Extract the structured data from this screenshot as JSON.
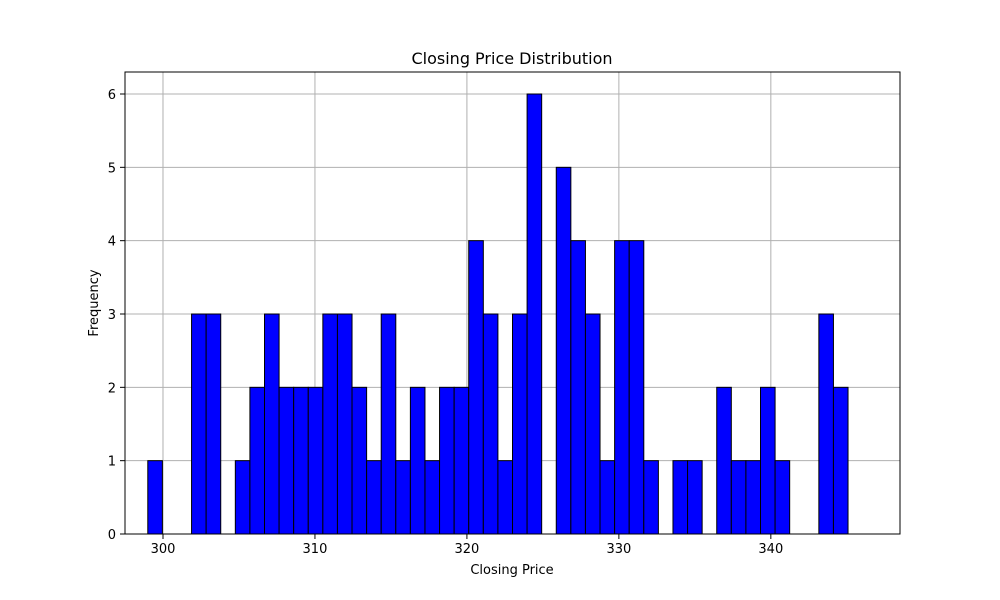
{
  "chart_data": {
    "type": "bar",
    "title": "Closing Price Distribution",
    "xlabel": "Closing Price",
    "ylabel": "Frequency",
    "bin_start": 299.0,
    "bin_width": 0.96,
    "values": [
      1,
      0,
      0,
      3,
      3,
      0,
      1,
      2,
      3,
      2,
      2,
      2,
      3,
      3,
      2,
      1,
      3,
      1,
      2,
      1,
      2,
      2,
      4,
      3,
      1,
      3,
      6,
      0,
      5,
      4,
      3,
      1,
      4,
      4,
      1,
      0,
      1,
      1,
      0,
      2,
      1,
      1,
      2,
      1,
      0,
      0,
      3,
      2
    ],
    "xlim": [
      297.5,
      348.5
    ],
    "ylim": [
      0,
      6.3
    ],
    "xticks": [
      300,
      310,
      320,
      330,
      340
    ],
    "yticks": [
      0,
      1,
      2,
      3,
      4,
      5,
      6
    ],
    "grid": true,
    "colors": {
      "bar_fill": "#0000ff",
      "bar_edge": "#000000",
      "grid": "#b0b0b0"
    }
  }
}
